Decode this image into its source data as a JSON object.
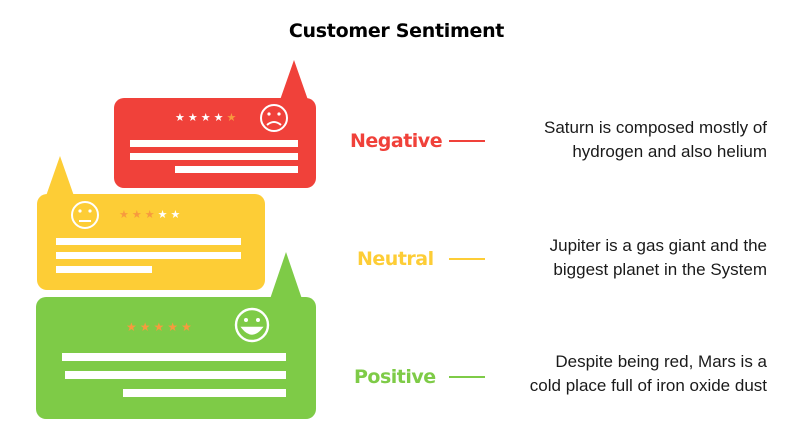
{
  "title": "Customer Sentiment",
  "colors": {
    "negative": "#f0413a",
    "neutral": "#fdcd36",
    "positive": "#7ecb47",
    "star_white": "#ffffff",
    "star_orange": "#f79a3e"
  },
  "items": [
    {
      "label": "Negative",
      "desc_line1": "Saturn is composed mostly of",
      "desc_line2": "hydrogen and also helium",
      "rating_stars": 4,
      "icon": "sad-face-icon"
    },
    {
      "label": "Neutral",
      "desc_line1": "Jupiter is a gas giant and the",
      "desc_line2": "biggest planet in the System",
      "rating_stars": 3,
      "icon": "neutral-face-icon"
    },
    {
      "label": "Positive",
      "desc_line1": "Despite being red, Mars is a",
      "desc_line2": "cold place full of iron oxide dust",
      "rating_stars": 5,
      "icon": "happy-face-icon"
    }
  ]
}
